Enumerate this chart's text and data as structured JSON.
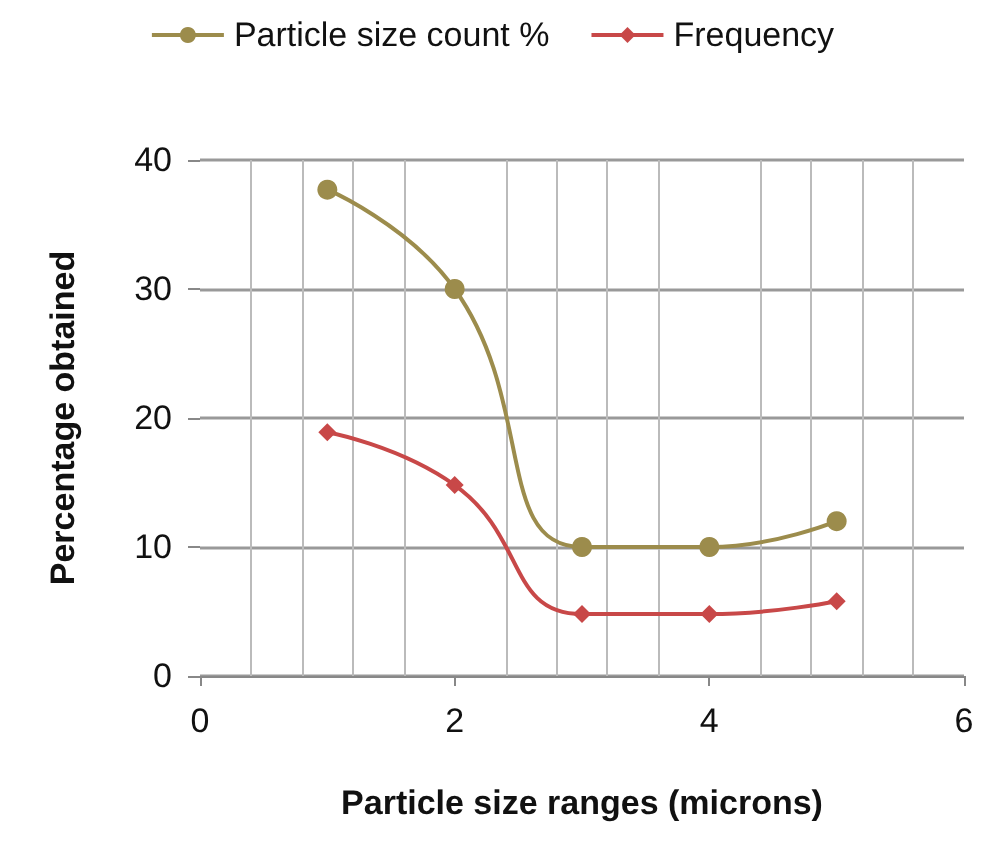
{
  "chart_data": {
    "type": "line",
    "xlabel": "Particle size ranges (microns)",
    "ylabel": "Percentage obtained",
    "x": [
      1,
      2,
      3,
      4,
      5
    ],
    "series": [
      {
        "name": "Particle size count %",
        "color": "#9c8c4c",
        "marker": "circle",
        "values": [
          37.7,
          30,
          10,
          10,
          12
        ]
      },
      {
        "name": "Frequency",
        "color": "#c84848",
        "marker": "diamond",
        "values": [
          18.9,
          14.8,
          4.8,
          4.8,
          5.8
        ]
      }
    ],
    "xlim": [
      0,
      6
    ],
    "xticks": [
      0,
      2,
      4,
      6
    ],
    "ylim": [
      0,
      40
    ],
    "yticks": [
      0,
      10,
      20,
      30,
      40
    ],
    "grid": true,
    "legend": "top",
    "line_style": "solid"
  }
}
